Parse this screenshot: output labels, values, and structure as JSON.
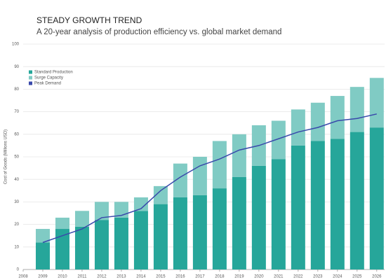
{
  "chart_data": {
    "type": "stacked-bar-line",
    "title": "STEADY GROWTH TREND",
    "subtitle": "A 20-year analysis of production efficiency vs. global market demand",
    "y_label": "Cost of Goods (Millions USD)",
    "x": [
      2009,
      2010,
      2011,
      2012,
      2013,
      2014,
      2015,
      2016,
      2017,
      2018,
      2019,
      2020,
      2021,
      2022,
      2023,
      2024,
      2025,
      2026
    ],
    "series": [
      {
        "name": "Standard Production",
        "color": "#26a69a",
        "kind": "bar",
        "values": [
          12,
          18,
          19,
          22,
          23,
          26,
          29,
          32,
          33,
          36,
          41,
          46,
          49,
          55,
          57,
          58,
          61,
          63
        ]
      },
      {
        "name": "Surge Capacity",
        "color": "#80cbc4",
        "kind": "bar",
        "values": [
          6,
          5,
          7,
          8,
          7,
          6,
          8,
          15,
          17,
          21,
          19,
          18,
          17,
          16,
          17,
          19,
          20,
          22
        ]
      },
      {
        "name": "Peak Demand",
        "color": "#3949ab",
        "kind": "line",
        "values": [
          12,
          15,
          18,
          23,
          24,
          27,
          35,
          41,
          46,
          49,
          53,
          55,
          58,
          61,
          63,
          66,
          67,
          69
        ]
      }
    ],
    "xlim": [
      2008,
      2026.4
    ],
    "xticks": [
      2008,
      2009,
      2010,
      2011,
      2012,
      2013,
      2014,
      2015,
      2016,
      2017,
      2018,
      2019,
      2020,
      2021,
      2022,
      2023,
      2024,
      2025,
      2026
    ],
    "ylim": [
      0,
      100
    ],
    "yticks": [
      0,
      10,
      20,
      30,
      40,
      50,
      60,
      70,
      80,
      90,
      100
    ],
    "grid": true,
    "legend": "top-left"
  }
}
